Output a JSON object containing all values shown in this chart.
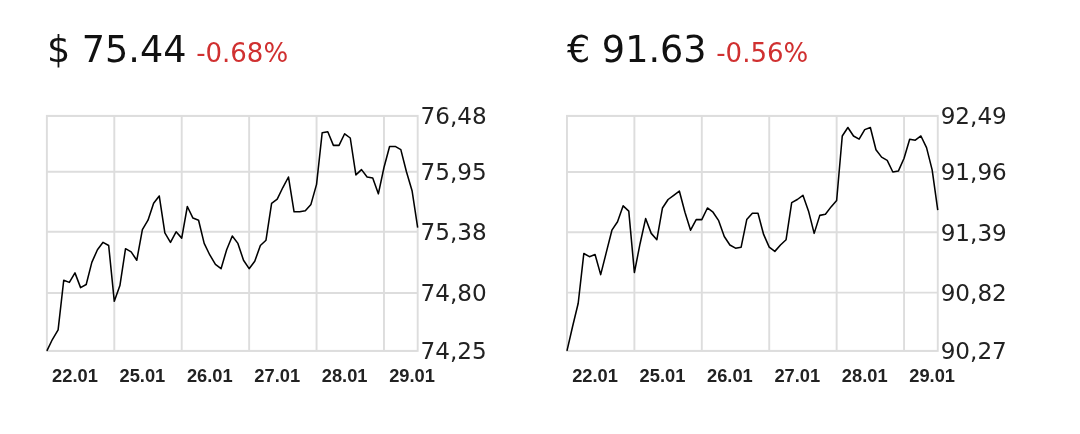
{
  "chart_data": [
    {
      "type": "line",
      "title": "$ 75.44",
      "subtitle": "-0.68%",
      "grid": true,
      "marker": "none",
      "line_style": "solid",
      "categories": [
        null,
        null,
        null,
        null,
        null,
        "22.01",
        null,
        null,
        null,
        null,
        null,
        null,
        null,
        null,
        null,
        null,
        null,
        "25.01",
        null,
        null,
        null,
        null,
        null,
        null,
        null,
        null,
        null,
        null,
        null,
        "26.01",
        null,
        null,
        null,
        null,
        null,
        null,
        null,
        null,
        null,
        null,
        null,
        "27.01",
        null,
        null,
        null,
        null,
        null,
        null,
        null,
        null,
        null,
        null,
        null,
        "28.01",
        null,
        null,
        null,
        null,
        null,
        null,
        null,
        null,
        null,
        null,
        null,
        "29.01",
        null
      ],
      "ylim": [
        74.25,
        76.48
      ],
      "yticks": [
        {
          "value": 74.25,
          "label": "74,25"
        },
        {
          "value": 74.8,
          "label": "74,80"
        },
        {
          "value": 75.38,
          "label": "75,38"
        },
        {
          "value": 75.95,
          "label": "75,95"
        },
        {
          "value": 76.48,
          "label": "76,48"
        }
      ],
      "series": [
        {
          "color": "#000000",
          "values": [
            74.25,
            74.36,
            74.45,
            74.92,
            74.9,
            74.99,
            74.85,
            74.88,
            75.09,
            75.21,
            75.28,
            75.25,
            74.72,
            74.87,
            75.22,
            75.19,
            75.11,
            75.4,
            75.49,
            75.65,
            75.72,
            75.37,
            75.28,
            75.38,
            75.32,
            75.62,
            75.51,
            75.49,
            75.27,
            75.16,
            75.07,
            75.03,
            75.21,
            75.34,
            75.27,
            75.11,
            75.03,
            75.1,
            75.25,
            75.3,
            75.65,
            75.69,
            75.8,
            75.9,
            75.57,
            75.57,
            75.58,
            75.64,
            75.83,
            76.32,
            76.33,
            76.2,
            76.2,
            76.31,
            76.27,
            75.92,
            75.97,
            75.9,
            75.89,
            75.74,
            75.99,
            76.19,
            76.19,
            76.16,
            75.95,
            75.77,
            75.42
          ]
        }
      ]
    },
    {
      "type": "line",
      "title": "€ 91.63",
      "subtitle": "-0.56%",
      "grid": true,
      "marker": "none",
      "line_style": "solid",
      "categories": [
        null,
        null,
        null,
        null,
        null,
        "22.01",
        null,
        null,
        null,
        null,
        null,
        null,
        null,
        null,
        null,
        null,
        null,
        "25.01",
        null,
        null,
        null,
        null,
        null,
        null,
        null,
        null,
        null,
        null,
        null,
        "26.01",
        null,
        null,
        null,
        null,
        null,
        null,
        null,
        null,
        null,
        null,
        null,
        "27.01",
        null,
        null,
        null,
        null,
        null,
        null,
        null,
        null,
        null,
        null,
        null,
        "28.01",
        null,
        null,
        null,
        null,
        null,
        null,
        null,
        null,
        null,
        null,
        null,
        "29.01",
        null
      ],
      "ylim": [
        90.27,
        92.49
      ],
      "yticks": [
        {
          "value": 90.27,
          "label": "90,27"
        },
        {
          "value": 90.82,
          "label": "90,82"
        },
        {
          "value": 91.39,
          "label": "91,39"
        },
        {
          "value": 91.96,
          "label": "91,96"
        },
        {
          "value": 92.49,
          "label": "92,49"
        }
      ],
      "series": [
        {
          "color": "#000000",
          "values": [
            90.27,
            90.5,
            90.72,
            91.19,
            91.16,
            91.18,
            90.99,
            91.2,
            91.41,
            91.49,
            91.64,
            91.59,
            91.01,
            91.28,
            91.52,
            91.38,
            91.32,
            91.62,
            91.7,
            91.74,
            91.78,
            91.58,
            91.41,
            91.51,
            91.51,
            91.62,
            91.58,
            91.5,
            91.35,
            91.27,
            91.24,
            91.25,
            91.51,
            91.57,
            91.57,
            91.37,
            91.25,
            91.21,
            91.27,
            91.32,
            91.67,
            91.7,
            91.74,
            91.59,
            91.38,
            91.55,
            91.56,
            91.63,
            91.69,
            92.3,
            92.38,
            92.3,
            92.27,
            92.36,
            92.38,
            92.17,
            92.1,
            92.07,
            91.96,
            91.97,
            92.09,
            92.27,
            92.26,
            92.3,
            92.19,
            91.98,
            91.6
          ]
        }
      ]
    }
  ]
}
